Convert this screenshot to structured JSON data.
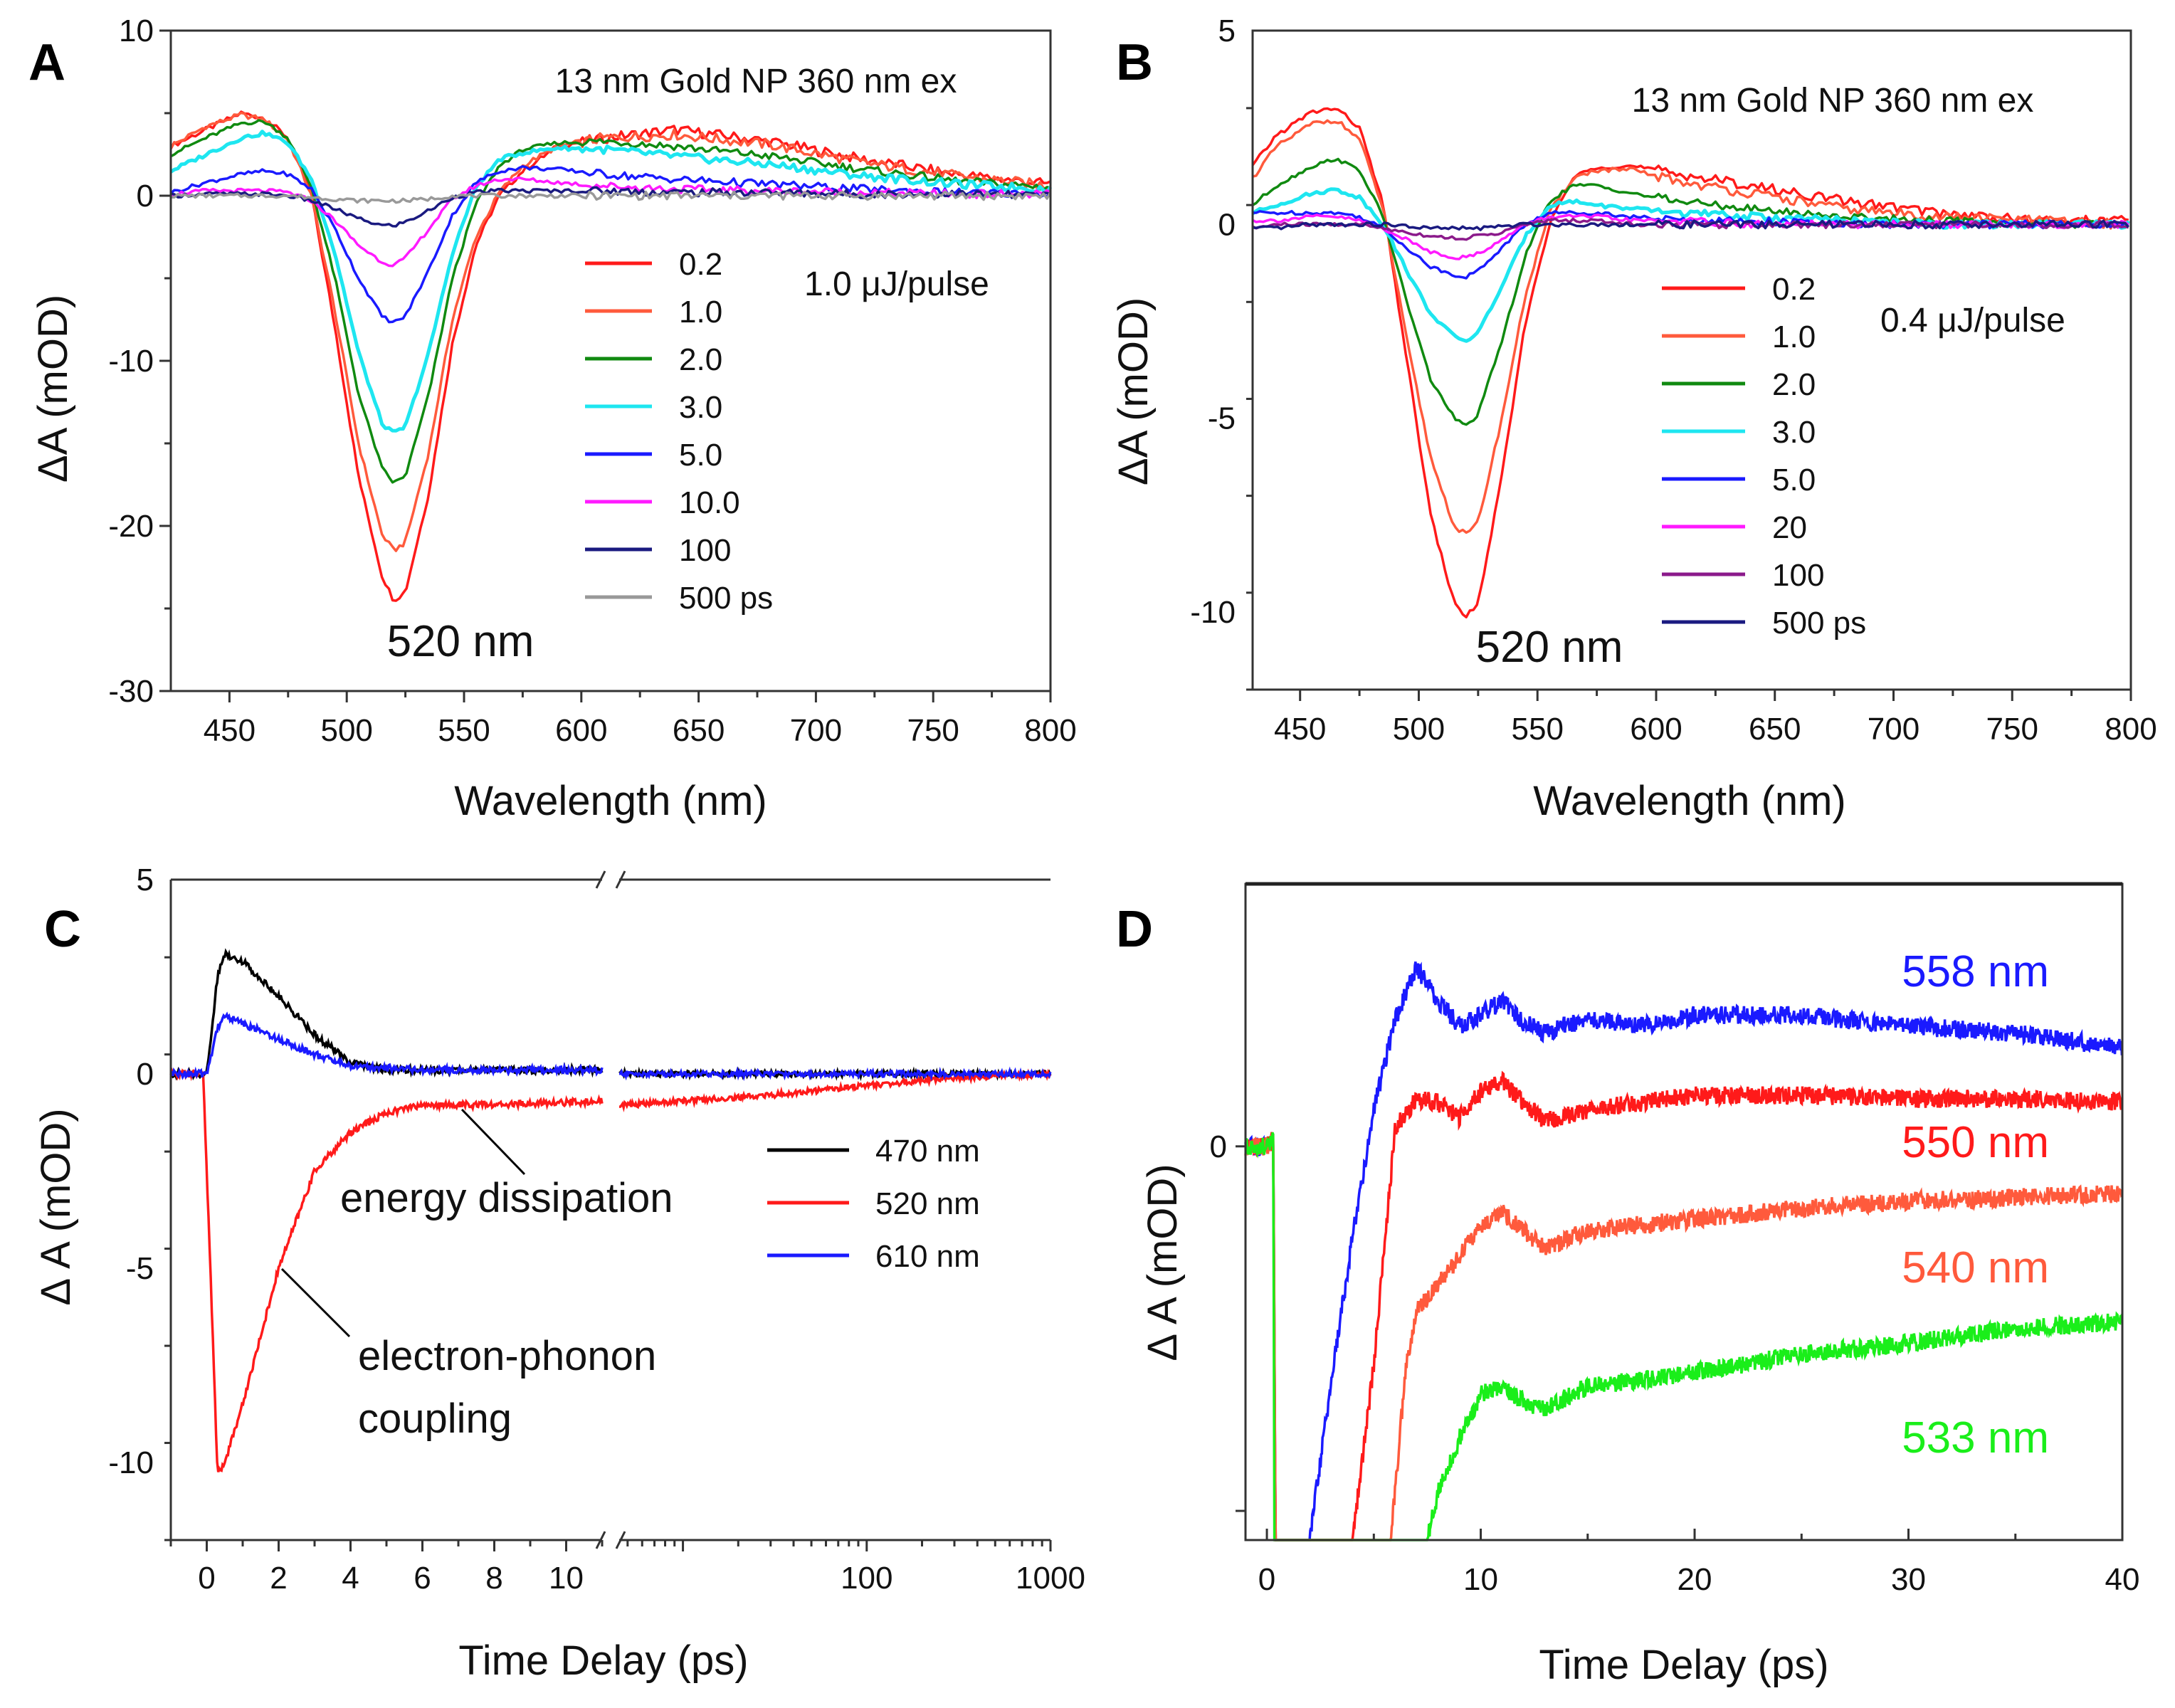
{
  "chart_data": [
    {
      "panel": "A",
      "type": "line",
      "title": "13 nm Gold NP 360 nm ex",
      "annotation_pulse": "1.0  μJ/pulse",
      "annotation_peak": "520 nm",
      "xlabel": "Wavelength (nm)",
      "ylabel": "ΔA (mOD)",
      "xlim": [
        425,
        800
      ],
      "ylim": [
        -30,
        10
      ],
      "xticks": [
        450,
        500,
        550,
        600,
        650,
        700,
        750,
        800
      ],
      "yticks": [
        10,
        0,
        -10,
        -20,
        -30
      ],
      "legend_position": "center-right",
      "x": [
        425,
        440,
        455,
        465,
        475,
        485,
        495,
        505,
        515,
        520,
        525,
        535,
        545,
        555,
        565,
        575,
        590,
        610,
        640,
        680,
        720,
        760,
        800
      ],
      "series": [
        {
          "name": "0.2",
          "color": "#ff1a1a",
          "values": [
            3,
            4,
            5,
            4.7,
            3.5,
            0,
            -8,
            -17,
            -23,
            -24.5,
            -24,
            -18,
            -9,
            -3,
            0,
            1.5,
            3,
            3.5,
            4,
            3.3,
            2.2,
            1.3,
            0.7
          ]
        },
        {
          "name": "1.0",
          "color": "#ff5a3c",
          "values": [
            3,
            4.2,
            4.9,
            4.6,
            3.4,
            0,
            -7,
            -15,
            -20.5,
            -21.5,
            -21,
            -15.5,
            -7.5,
            -2.5,
            0.2,
            1.8,
            3,
            3.5,
            3.7,
            3.1,
            2,
            1.2,
            0.6
          ]
        },
        {
          "name": "2.0",
          "color": "#108a10",
          "values": [
            2.5,
            3.5,
            4.4,
            4.5,
            3.5,
            0.5,
            -5,
            -12,
            -16.5,
            -17.4,
            -17,
            -12,
            -5,
            -0.5,
            1.8,
            2.8,
            3.2,
            3.3,
            3,
            2.4,
            1.6,
            0.9,
            0.5
          ]
        },
        {
          "name": "3.0",
          "color": "#1ee6f0",
          "values": [
            1.5,
            2.5,
            3.5,
            3.8,
            3.2,
            1,
            -3.5,
            -9.5,
            -13.8,
            -14.4,
            -14,
            -9.5,
            -3.5,
            0.5,
            2.2,
            2.6,
            2.9,
            2.8,
            2.4,
            1.9,
            1.2,
            0.7,
            0.4
          ]
        },
        {
          "name": "5.0",
          "color": "#1a1aff",
          "values": [
            0.2,
            0.8,
            1.3,
            1.5,
            1.3,
            0.4,
            -2,
            -5,
            -7.3,
            -7.7,
            -7.3,
            -4.5,
            -1.2,
            0.8,
            1.5,
            1.7,
            1.6,
            1.3,
            1,
            0.7,
            0.4,
            0.2,
            0.1
          ]
        },
        {
          "name": "10.0",
          "color": "#ff1aff",
          "values": [
            0.1,
            0.3,
            0.3,
            0.3,
            0.2,
            -0.3,
            -1.5,
            -3,
            -4,
            -4.2,
            -3.8,
            -2,
            -0.2,
            0.6,
            1,
            1,
            0.8,
            0.6,
            0.4,
            0.3,
            0.2,
            0.1,
            0.1
          ]
        },
        {
          "name": "100",
          "color": "#1a1a80",
          "values": [
            0,
            0.1,
            0.1,
            0.1,
            0,
            -0.3,
            -0.8,
            -1.4,
            -1.8,
            -1.8,
            -1.6,
            -0.9,
            -0.1,
            0.2,
            0.3,
            0.3,
            0.3,
            0.3,
            0.2,
            0.2,
            0.1,
            0.1,
            0
          ]
        },
        {
          "name": "500 ps",
          "color": "#999999",
          "values": [
            0,
            0,
            0,
            0,
            0,
            -0.1,
            -0.2,
            -0.3,
            -0.3,
            -0.3,
            -0.3,
            -0.2,
            0,
            0,
            0,
            0,
            0,
            0,
            0,
            0,
            0,
            0,
            0
          ]
        }
      ]
    },
    {
      "panel": "B",
      "type": "line",
      "title": "13 nm Gold NP 360 nm ex",
      "annotation_pulse": "0.4  μJ/pulse",
      "annotation_peak": "520 nm",
      "xlabel": "Wavelength (nm)",
      "ylabel": "ΔA (mOD)",
      "xlim": [
        430,
        800
      ],
      "ylim": [
        -12,
        5
      ],
      "xticks": [
        450,
        500,
        550,
        600,
        650,
        700,
        750,
        800
      ],
      "yticks": [
        5,
        0,
        -5,
        -10
      ],
      "legend_position": "center-right",
      "x": [
        430,
        440,
        455,
        465,
        475,
        485,
        495,
        505,
        515,
        520,
        525,
        535,
        545,
        555,
        565,
        575,
        590,
        610,
        640,
        680,
        720,
        760,
        800
      ],
      "series": [
        {
          "name": "0.2",
          "color": "#ff1a1a",
          "values": [
            1.5,
            2.3,
            2.9,
            3.0,
            2.5,
            0.5,
            -3.5,
            -7.5,
            -9.8,
            -10.1,
            -9.8,
            -6.5,
            -2.5,
            0,
            1.2,
            1.5,
            1.5,
            1.3,
            1.0,
            0.6,
            0.3,
            0.1,
            0.1
          ]
        },
        {
          "name": "1.0",
          "color": "#ff5a3c",
          "values": [
            1.2,
            2,
            2.6,
            2.7,
            2.2,
            0.4,
            -3,
            -6,
            -7.8,
            -8,
            -7.7,
            -5,
            -1.8,
            0.3,
            1.2,
            1.4,
            1.4,
            1.1,
            0.8,
            0.4,
            0.2,
            0.1,
            0
          ]
        },
        {
          "name": "2.0",
          "color": "#108a10",
          "values": [
            0.5,
            1,
            1.5,
            1.7,
            1.4,
            0.2,
            -2,
            -4,
            -5,
            -5.2,
            -4.9,
            -3,
            -0.8,
            0.6,
            1,
            1,
            0.8,
            0.6,
            0.4,
            0.2,
            0.1,
            0,
            0
          ]
        },
        {
          "name": "3.0",
          "color": "#1ee6f0",
          "values": [
            0.3,
            0.5,
            0.8,
            0.9,
            0.7,
            0,
            -1.2,
            -2.3,
            -2.9,
            -3,
            -2.8,
            -1.6,
            -0.3,
            0.5,
            0.6,
            0.5,
            0.4,
            0.3,
            0.2,
            0.1,
            0,
            0,
            0
          ]
        },
        {
          "name": "5.0",
          "color": "#1a1aff",
          "values": [
            0.3,
            0.3,
            0.3,
            0.3,
            0.2,
            -0.1,
            -0.6,
            -1.1,
            -1.3,
            -1.35,
            -1.2,
            -0.6,
            0,
            0.3,
            0.3,
            0.3,
            0.2,
            0.1,
            0.1,
            0,
            0,
            0,
            0
          ]
        },
        {
          "name": "20",
          "color": "#ff1aff",
          "values": [
            0.1,
            0.1,
            0.2,
            0.2,
            0.1,
            -0.1,
            -0.4,
            -0.7,
            -0.85,
            -0.85,
            -0.75,
            -0.4,
            0,
            0.2,
            0.2,
            0.2,
            0.1,
            0.1,
            0,
            0,
            0,
            0,
            0
          ]
        },
        {
          "name": "100",
          "color": "#8b1a8b",
          "values": [
            -0.1,
            0,
            0,
            0,
            0,
            -0.1,
            -0.2,
            -0.3,
            -0.35,
            -0.35,
            -0.3,
            -0.2,
            0,
            0.1,
            0.1,
            0.1,
            0,
            0,
            0,
            0,
            0,
            0,
            0
          ]
        },
        {
          "name": "500 ps",
          "color": "#1a1a80",
          "values": [
            -0.1,
            -0.1,
            0,
            0,
            0,
            0,
            -0.05,
            -0.1,
            -0.1,
            -0.1,
            -0.1,
            -0.05,
            0,
            0,
            0,
            0,
            0,
            0,
            0,
            0,
            0,
            0,
            0
          ]
        }
      ]
    },
    {
      "panel": "C",
      "type": "line",
      "xlabel": "Time Delay (ps)",
      "ylabel": "Δ A (mOD)",
      "x_axis": "broken: linear -1 to 11, then log 4.5 to 1000",
      "ylim": [
        -12,
        5
      ],
      "xticks_linear": [
        0,
        2,
        4,
        6,
        8,
        10
      ],
      "xticks_log": [
        100,
        1000
      ],
      "yticks": [
        5,
        0,
        -5,
        -10
      ],
      "legend_position": "center-right",
      "annotations": [
        "energy dissipation",
        "electron-phonon",
        "coupling"
      ],
      "series": [
        {
          "name": "470 nm",
          "color": "#000000",
          "linear": {
            "t": [
              -1,
              0,
              0.3,
              0.5,
              1,
              2,
              3,
              4,
              5,
              8,
              11
            ],
            "v": [
              0,
              0,
              2.5,
              3.1,
              2.9,
              2,
              1,
              0.3,
              0.1,
              0.1,
              0.1
            ]
          },
          "log": {
            "t": [
              5,
              10,
              100,
              1000
            ],
            "v": [
              0,
              0,
              0,
              0
            ]
          }
        },
        {
          "name": "520 nm",
          "color": "#ff1a1a",
          "linear": {
            "t": [
              -1,
              -0.1,
              0.1,
              0.3,
              0.5,
              1,
              2,
              3,
              4,
              5,
              6,
              8,
              11
            ],
            "v": [
              0,
              0,
              -5,
              -10.3,
              -10,
              -8.5,
              -5,
              -2.5,
              -1.5,
              -1,
              -0.8,
              -0.8,
              -0.7
            ]
          },
          "log": {
            "t": [
              5,
              10,
              30,
              100,
              300,
              1000
            ],
            "v": [
              -0.8,
              -0.7,
              -0.55,
              -0.3,
              -0.1,
              0
            ]
          }
        },
        {
          "name": "610 nm",
          "color": "#1a1aff",
          "linear": {
            "t": [
              -1,
              0,
              0.3,
              0.5,
              1,
              2,
              3,
              4,
              6,
              11
            ],
            "v": [
              0,
              0,
              1.2,
              1.5,
              1.3,
              0.9,
              0.5,
              0.2,
              0.1,
              0.1
            ]
          },
          "log": {
            "t": [
              5,
              10,
              100,
              1000
            ],
            "v": [
              0,
              0,
              0,
              0
            ]
          }
        }
      ]
    },
    {
      "panel": "D",
      "type": "line",
      "xlabel": "Time Delay (ps)",
      "ylabel": "Δ A (mOD)",
      "xlim": [
        -1,
        40
      ],
      "ylim": [
        -1.08,
        0.72
      ],
      "xticks": [
        0,
        10,
        20,
        30,
        40
      ],
      "yticks_labeled": [
        0
      ],
      "yticks_unlabeled": [
        -1
      ],
      "series": [
        {
          "name": "558 nm",
          "color": "#1a1aff",
          "t": [
            -1,
            0,
            0.3,
            0.4,
            2,
            3,
            4,
            5,
            6,
            7,
            8,
            9,
            10,
            11,
            12,
            13,
            15,
            18,
            20,
            25,
            30,
            35,
            40
          ],
          "v": [
            0,
            0,
            0.02,
            -1.08,
            -1.08,
            -0.65,
            -0.25,
            0.1,
            0.35,
            0.49,
            0.4,
            0.33,
            0.36,
            0.4,
            0.34,
            0.31,
            0.35,
            0.33,
            0.36,
            0.36,
            0.33,
            0.31,
            0.27
          ]
        },
        {
          "name": "550 nm",
          "color": "#ff1a1a",
          "t": [
            -1,
            0,
            0.3,
            0.4,
            4,
            5,
            6,
            7,
            8,
            9,
            10,
            11,
            12,
            13,
            15,
            20,
            25,
            30,
            35,
            40
          ],
          "v": [
            0,
            0,
            0.02,
            -1.08,
            -1.08,
            -0.6,
            0.05,
            0.13,
            0.12,
            0.08,
            0.15,
            0.18,
            0.12,
            0.07,
            0.1,
            0.14,
            0.14,
            0.13,
            0.13,
            0.12
          ]
        },
        {
          "name": "540 nm",
          "color": "#ff5a3c",
          "t": [
            -1,
            0,
            0.3,
            0.4,
            5.8,
            6.5,
            7,
            8,
            9,
            10,
            11,
            12,
            13,
            15,
            20,
            25,
            30,
            35,
            40
          ],
          "v": [
            0,
            0,
            0.02,
            -1.08,
            -1.08,
            -0.6,
            -0.45,
            -0.38,
            -0.3,
            -0.22,
            -0.18,
            -0.23,
            -0.28,
            -0.23,
            -0.2,
            -0.17,
            -0.15,
            -0.14,
            -0.13
          ]
        },
        {
          "name": "533 nm",
          "color": "#1aee1a",
          "t": [
            -1,
            0,
            0.3,
            0.35,
            7.5,
            8,
            9,
            10,
            11,
            12,
            13,
            15,
            20,
            25,
            30,
            35,
            40
          ],
          "v": [
            0,
            0,
            0.02,
            -1.08,
            -1.08,
            -0.95,
            -0.8,
            -0.68,
            -0.66,
            -0.7,
            -0.72,
            -0.66,
            -0.62,
            -0.57,
            -0.54,
            -0.5,
            -0.48
          ]
        }
      ]
    }
  ],
  "panel_labels": [
    "A",
    "B",
    "C",
    "D"
  ]
}
